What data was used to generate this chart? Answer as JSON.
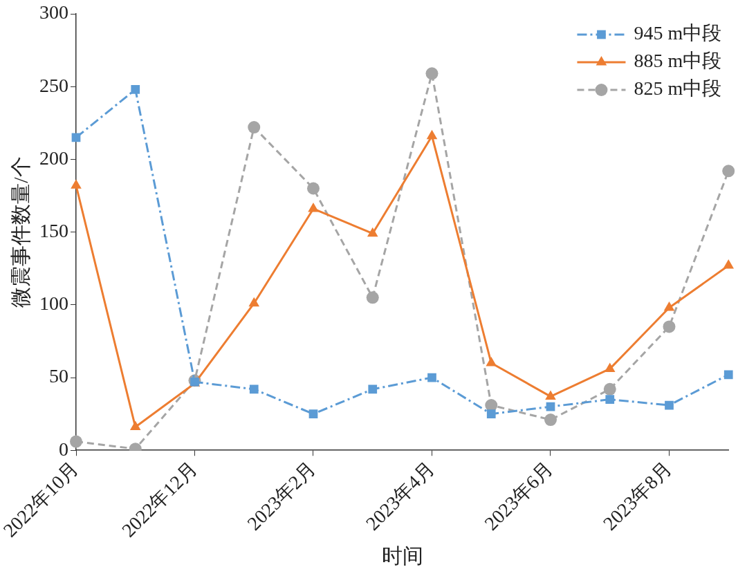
{
  "chart_data": {
    "type": "line",
    "xlabel": "时间",
    "ylabel": "微震事件数量/个",
    "categories": [
      "2022年10月",
      null,
      "2022年12月",
      null,
      "2023年2月",
      null,
      "2023年4月",
      null,
      "2023年6月",
      null,
      "2023年8月",
      null
    ],
    "ylim": [
      0,
      300
    ],
    "yticks": [
      0,
      50,
      100,
      150,
      200,
      250,
      300
    ],
    "grid": false,
    "legend": "top right",
    "series": [
      {
        "name": "945 m中段",
        "color": "#5b9bd5",
        "marker": "square",
        "line_style": "dashdot",
        "values": [
          215,
          248,
          47,
          42,
          25,
          42,
          50,
          25,
          30,
          35,
          31,
          52
        ]
      },
      {
        "name": "885 m中段",
        "color": "#ed7d31",
        "marker": "triangle",
        "line_style": "solid",
        "values": [
          182,
          16,
          46,
          101,
          166,
          149,
          216,
          60,
          37,
          56,
          98,
          127
        ]
      },
      {
        "name": "825 m中段",
        "color": "#a5a5a5",
        "marker": "circle",
        "line_style": "dashed",
        "values": [
          6,
          1,
          48,
          222,
          180,
          105,
          259,
          31,
          21,
          42,
          85,
          192
        ]
      }
    ]
  }
}
